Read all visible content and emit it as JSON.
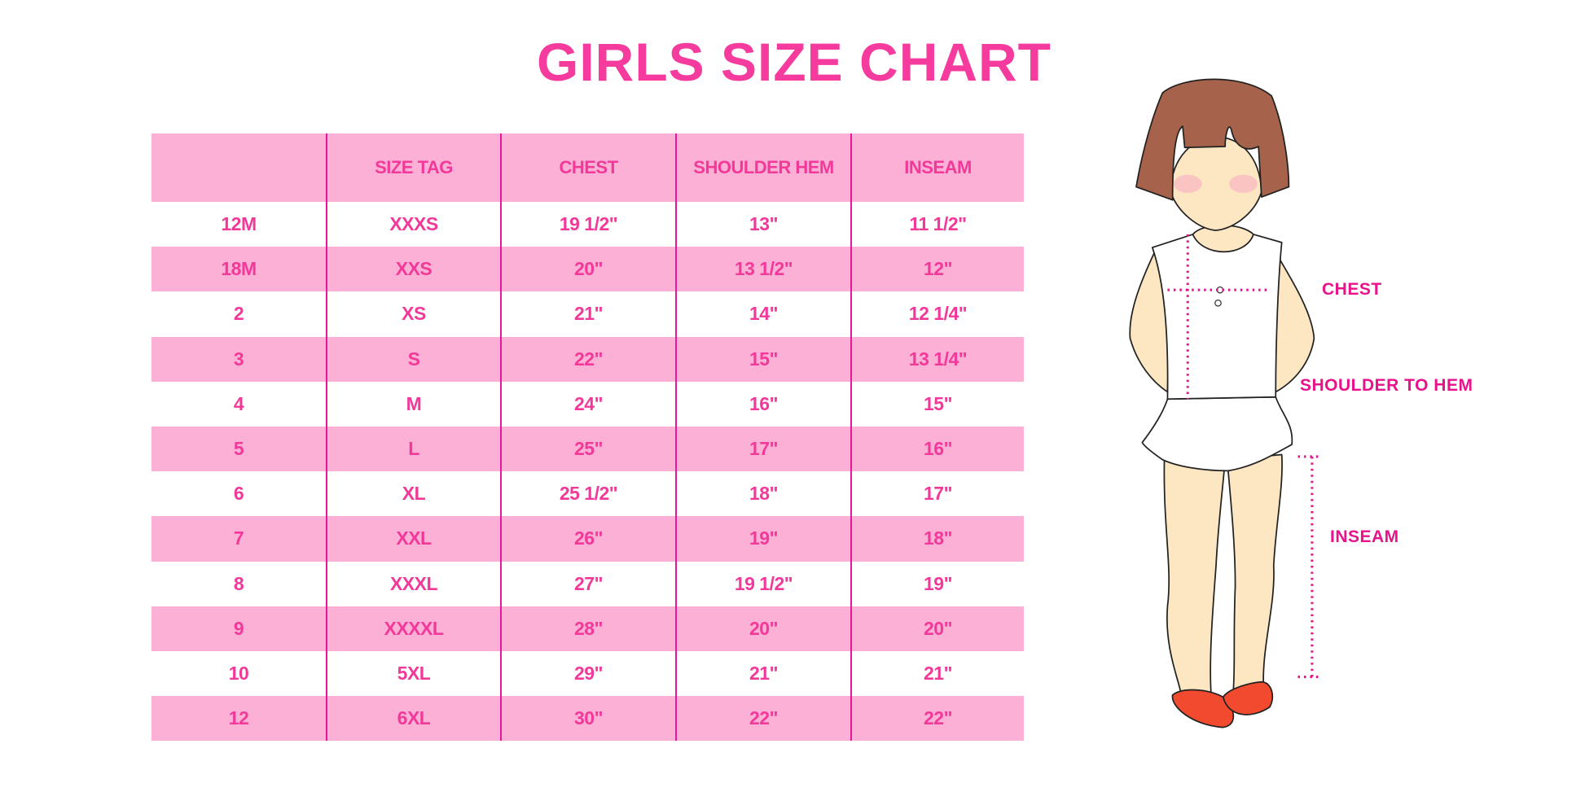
{
  "title": "GIRLS SIZE CHART",
  "colors": {
    "accent": "#f53c9e",
    "row_pink": "#fdb0d5",
    "divider": "#e8179a"
  },
  "table": {
    "headers": [
      "",
      "SIZE TAG",
      "CHEST",
      "SHOULDER HEM",
      "INSEAM"
    ],
    "rows": [
      [
        "12M",
        "XXXS",
        "19 1/2\"",
        "13\"",
        "11 1/2\""
      ],
      [
        "18M",
        "XXS",
        "20\"",
        "13 1/2\"",
        "12\""
      ],
      [
        "2",
        "XS",
        "21\"",
        "14\"",
        "12 1/4\""
      ],
      [
        "3",
        "S",
        "22\"",
        "15\"",
        "13 1/4\""
      ],
      [
        "4",
        "M",
        "24\"",
        "16\"",
        "15\""
      ],
      [
        "5",
        "L",
        "25\"",
        "17\"",
        "16\""
      ],
      [
        "6",
        "XL",
        "25 1/2\"",
        "18\"",
        "17\""
      ],
      [
        "7",
        "XXL",
        "26\"",
        "19\"",
        "18\""
      ],
      [
        "8",
        "XXXL",
        "27\"",
        "19 1/2\"",
        "19\""
      ],
      [
        "9",
        "XXXXL",
        "28\"",
        "20\"",
        "20\""
      ],
      [
        "10",
        "5XL",
        "29\"",
        "21\"",
        "21\""
      ],
      [
        "12",
        "6XL",
        "30\"",
        "22\"",
        "22\""
      ]
    ]
  },
  "figure": {
    "labels": {
      "chest": "CHEST",
      "shoulder": "SHOULDER TO HEM",
      "inseam": "INSEAM"
    }
  }
}
